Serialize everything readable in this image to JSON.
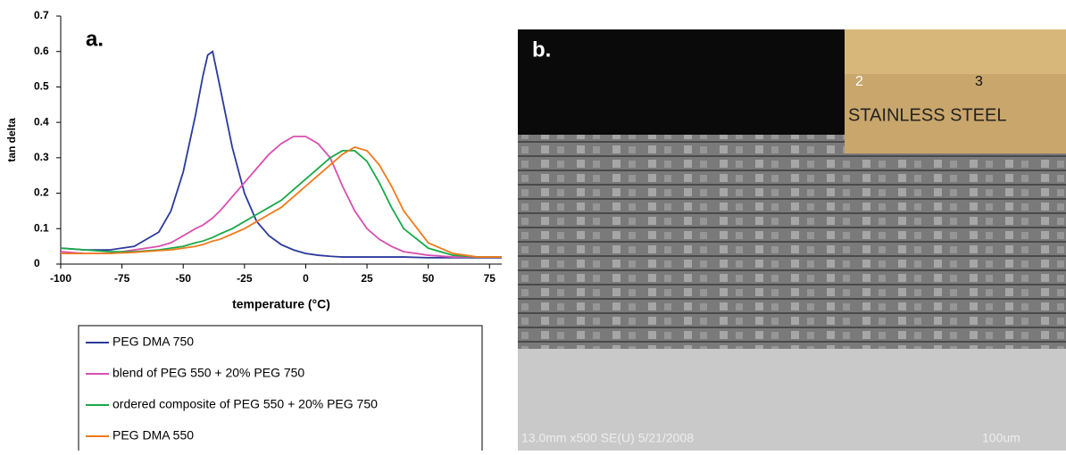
{
  "chart_data": {
    "type": "line",
    "annotations": [
      "a."
    ],
    "xlabel": "temperature (°C)",
    "ylabel": "tan delta",
    "x": [
      -100,
      -90,
      -80,
      -70,
      -60,
      -55,
      -50,
      -45,
      -42,
      -40,
      -38,
      -35,
      -30,
      -25,
      -20,
      -15,
      -10,
      -5,
      0,
      5,
      10,
      15,
      20,
      25,
      30,
      35,
      40,
      50,
      60,
      70,
      80
    ],
    "series": [
      {
        "name": "PEG DMA 750",
        "color": "#2b3a9b",
        "values": [
          0.045,
          0.04,
          0.04,
          0.05,
          0.09,
          0.15,
          0.26,
          0.42,
          0.53,
          0.59,
          0.6,
          0.5,
          0.33,
          0.2,
          0.12,
          0.08,
          0.055,
          0.04,
          0.03,
          0.025,
          0.022,
          0.02,
          0.02,
          0.02,
          0.02,
          0.02,
          0.02,
          0.018,
          0.018,
          0.018,
          0.018
        ]
      },
      {
        "name": "blend of PEG 550 + 20% PEG 750",
        "color": "#d94fb0",
        "values": [
          0.035,
          0.03,
          0.03,
          0.04,
          0.05,
          0.06,
          0.08,
          0.1,
          0.11,
          0.12,
          0.13,
          0.15,
          0.19,
          0.23,
          0.27,
          0.31,
          0.34,
          0.36,
          0.36,
          0.34,
          0.3,
          0.22,
          0.15,
          0.1,
          0.07,
          0.05,
          0.035,
          0.025,
          0.02,
          0.02,
          0.02
        ]
      },
      {
        "name": "ordered composite of PEG 550 + 20% PEG 750",
        "color": "#1aa84a",
        "values": [
          0.045,
          0.04,
          0.035,
          0.035,
          0.04,
          0.045,
          0.05,
          0.06,
          0.065,
          0.07,
          0.075,
          0.085,
          0.1,
          0.12,
          0.14,
          0.16,
          0.18,
          0.21,
          0.24,
          0.27,
          0.3,
          0.32,
          0.32,
          0.29,
          0.23,
          0.16,
          0.1,
          0.045,
          0.025,
          0.02,
          0.02
        ]
      },
      {
        "name": "PEG DMA 550",
        "color": "#f07a1c",
        "values": [
          0.03,
          0.03,
          0.03,
          0.033,
          0.038,
          0.04,
          0.045,
          0.05,
          0.055,
          0.06,
          0.065,
          0.07,
          0.085,
          0.1,
          0.12,
          0.14,
          0.16,
          0.19,
          0.22,
          0.25,
          0.28,
          0.31,
          0.33,
          0.32,
          0.28,
          0.22,
          0.15,
          0.06,
          0.03,
          0.02,
          0.02
        ]
      }
    ],
    "xlim": [
      -100,
      80
    ],
    "xticks": [
      -100,
      -75,
      -50,
      -25,
      0,
      25,
      50,
      75
    ],
    "ylim": [
      0,
      0.7
    ],
    "yticks": [
      0,
      0.1,
      0.2,
      0.3,
      0.4,
      0.5,
      0.6,
      0.7
    ],
    "grid": false
  },
  "image_panel": {
    "label": "b.",
    "info": "13.0mm x500 SE(U) 5/21/2008",
    "scale": "100um",
    "inset_text": "STAINLESS STEEL",
    "ruler_2": "2",
    "ruler_3": "3"
  }
}
